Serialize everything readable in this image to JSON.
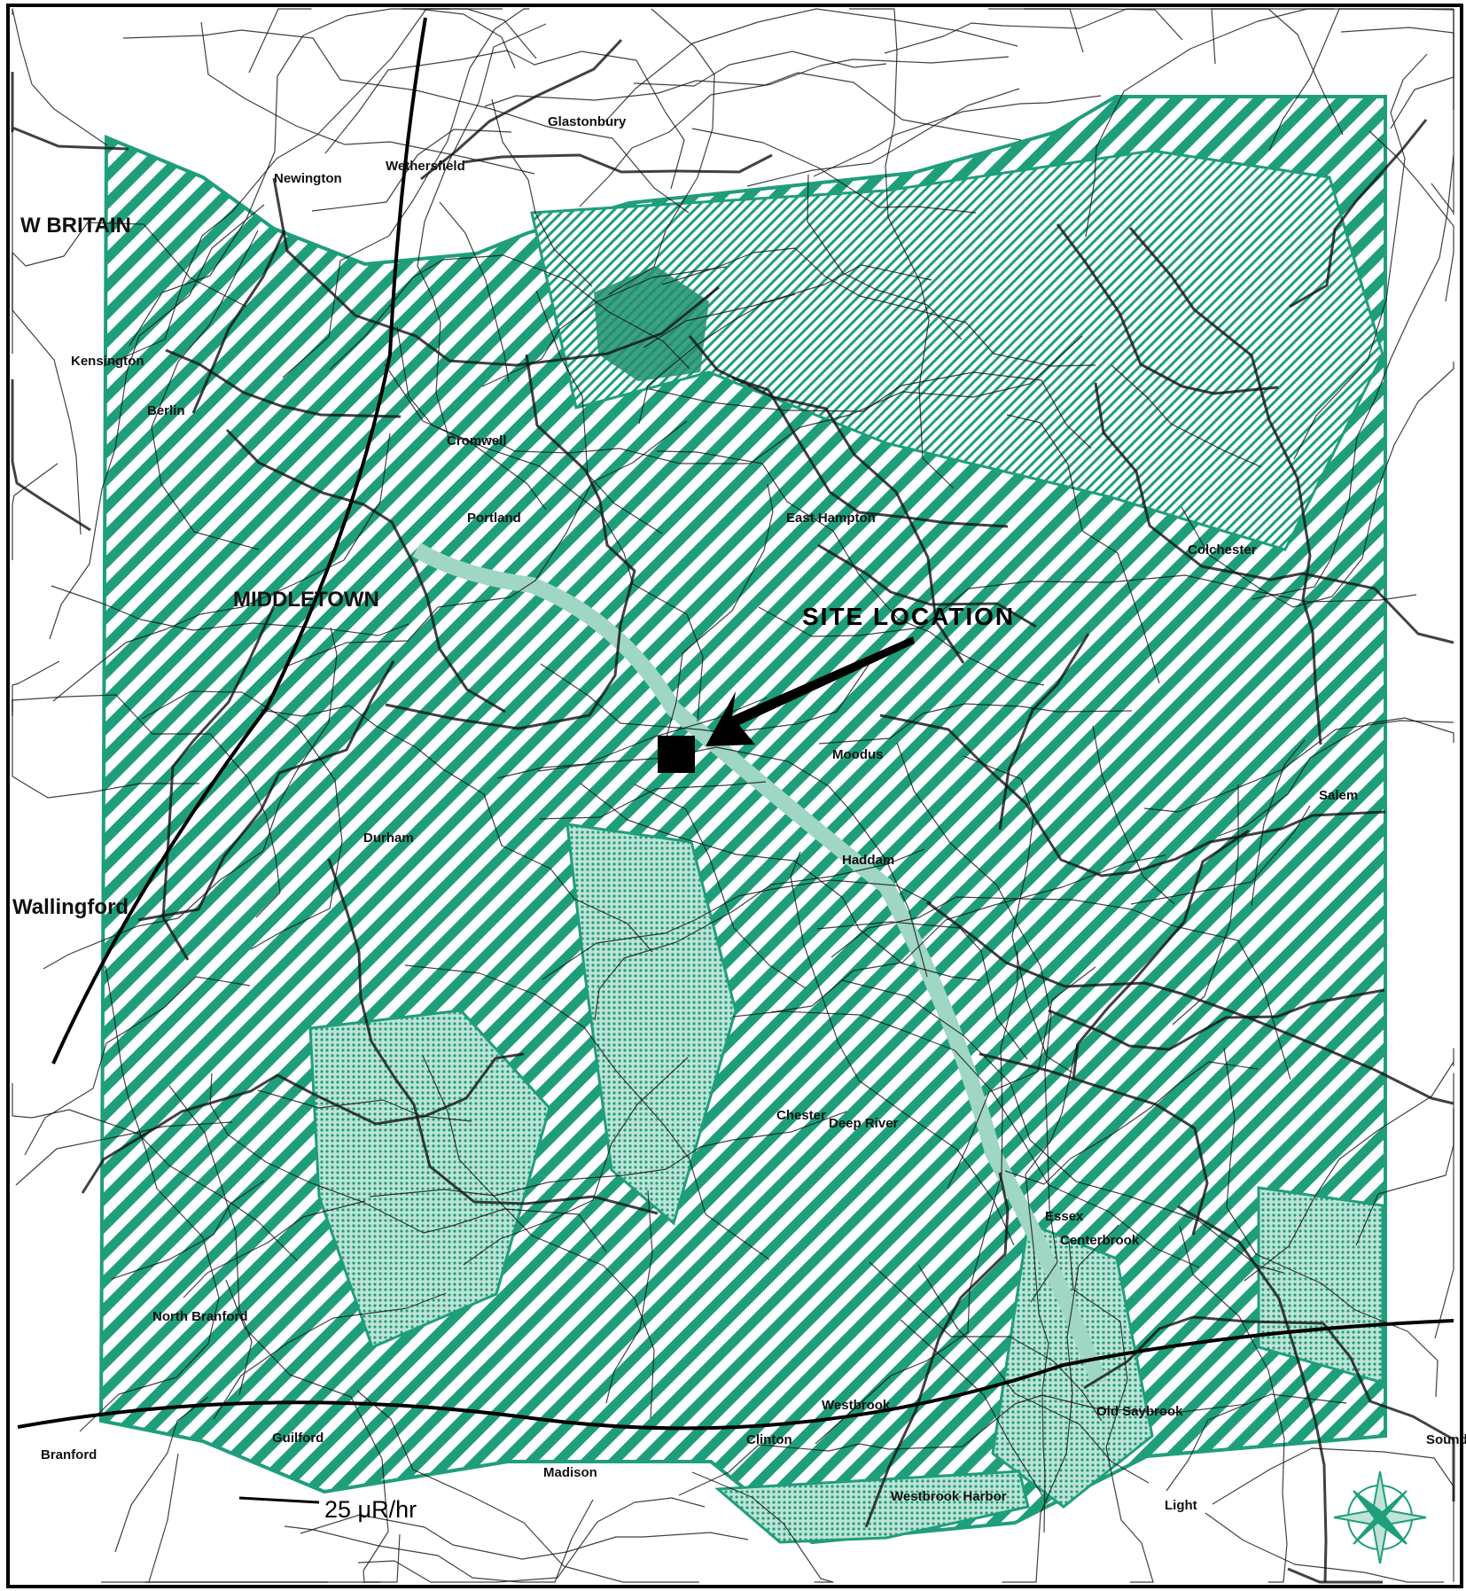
{
  "map": {
    "callout": "SITE LOCATION",
    "isopleth_label": "25 μR/hr",
    "place_names": [
      "W BRITAIN",
      "Kensington",
      "Berlin",
      "MIDDLETOWN",
      "Wethersfield",
      "Glastonbury",
      "Newington",
      "Cromwell",
      "Portland",
      "East Hampton",
      "Colchester",
      "Wallingford",
      "Moodus",
      "Haddam",
      "Chester",
      "Deep River",
      "Essex",
      "Centerbrook",
      "Westbrook",
      "Clinton",
      "Madison",
      "Guilford",
      "Branford",
      "North Branford",
      "Salem",
      "Westbrook Harbor",
      "Sound View",
      "Light",
      "Old Saybrook",
      "Durham"
    ]
  }
}
